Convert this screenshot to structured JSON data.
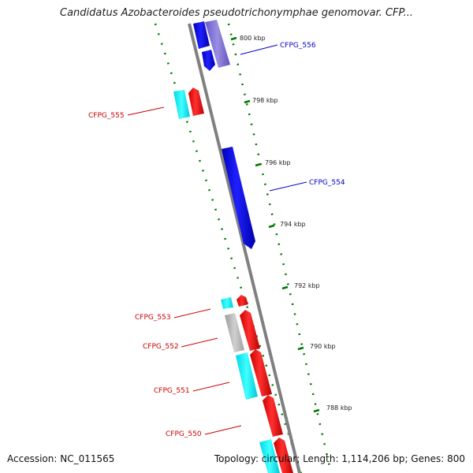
{
  "title": "Candidatus Azobacteroides pseudotrichonymphae genomovar. CFP...",
  "footer": {
    "accession": "Accession: NC_011565",
    "summary": "Topology: circular; Length: 1,114,206 bp; Genes: 800"
  },
  "colors": {
    "forward_cds": "#ff0000",
    "reverse_cds": "#0000ff",
    "trna_cyan": "#00ffff",
    "gray_feature": "#b0b0b0",
    "backbone": "#808080",
    "tick_green": "#007700",
    "label_red": "#cc0000",
    "label_blue": "#0000cc"
  },
  "ticks": [
    "800 kbp",
    "798 kbp",
    "796 kbp",
    "794 kbp",
    "792 kbp",
    "790 kbp",
    "788 kbp"
  ],
  "gene_labels": [
    "CFPG_556",
    "CFPG_555",
    "CFPG_554",
    "CFPG_553",
    "CFPG_552",
    "CFPG_551",
    "CFPG_550"
  ]
}
